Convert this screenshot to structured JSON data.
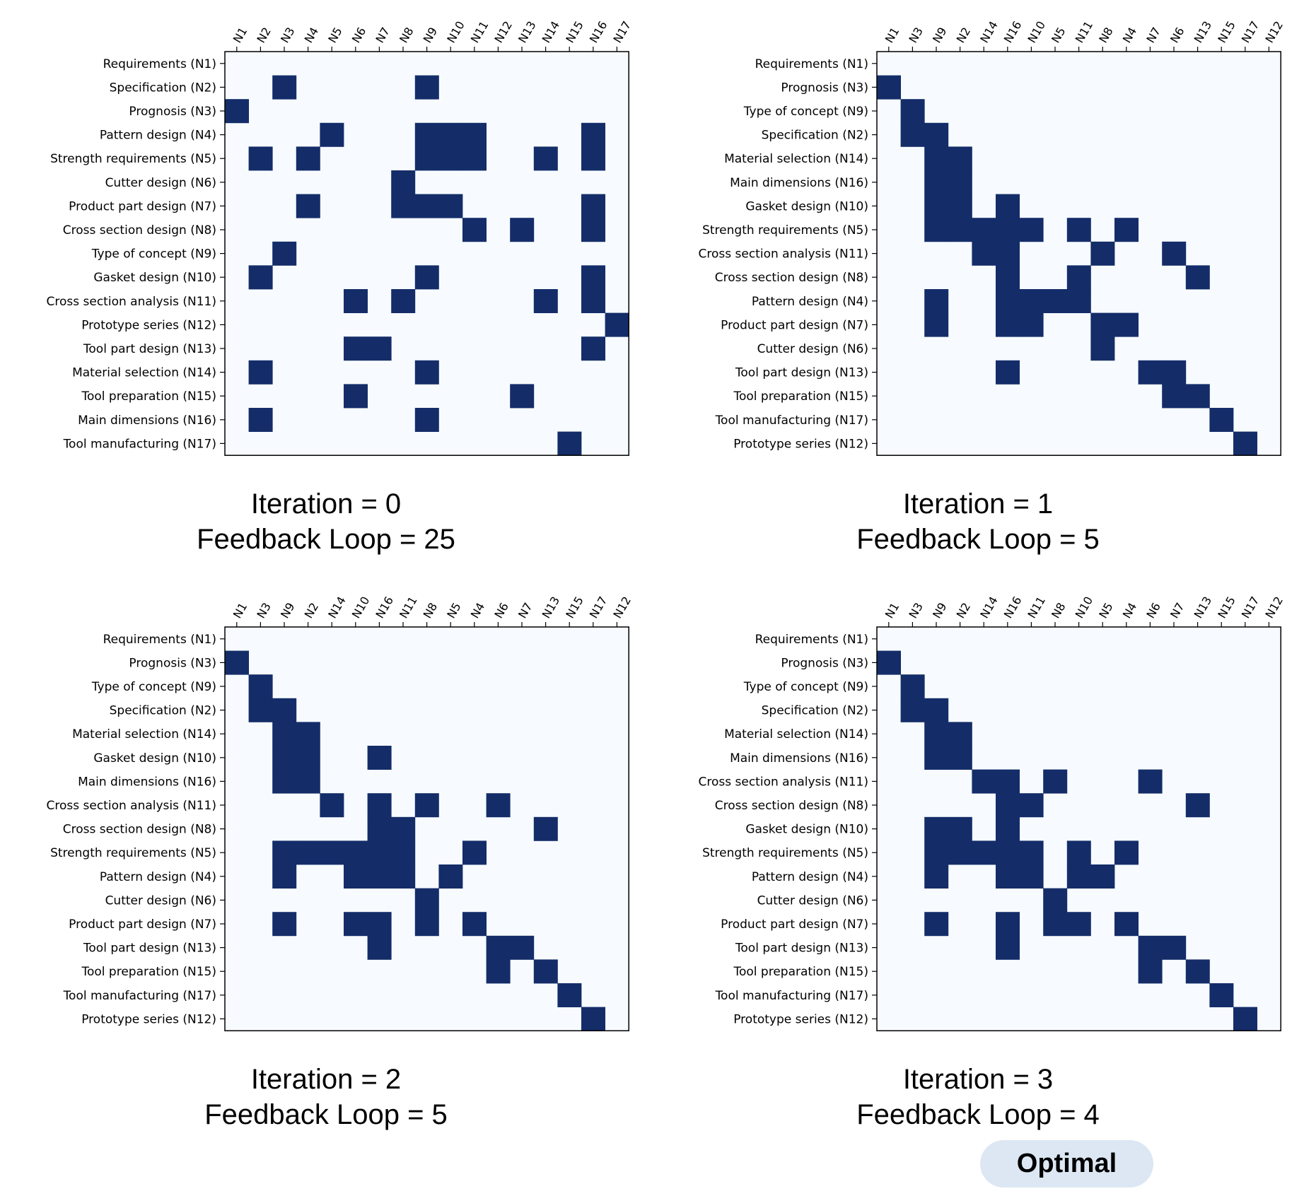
{
  "colors": {
    "filled": "#142d69",
    "empty": "#f7fbff",
    "badge": "#dce7f3"
  },
  "badge": "Optimal",
  "chart_data": [
    {
      "type": "heatmap",
      "caption_line1": "Iteration = 0",
      "caption_line2": "Feedback Loop = 25",
      "x_labels": [
        "N1",
        "N2",
        "N3",
        "N4",
        "N5",
        "N6",
        "N7",
        "N8",
        "N9",
        "N10",
        "N11",
        "N12",
        "N13",
        "N14",
        "N15",
        "N16",
        "N17"
      ],
      "y_labels": [
        "Requirements (N1)",
        "Specification (N2)",
        "Prognosis (N3)",
        "Pattern design (N4)",
        "Strength requirements (N5)",
        "Cutter design (N6)",
        "Product part design (N7)",
        "Cross section design (N8)",
        "Type of concept (N9)",
        "Gasket design (N10)",
        "Cross section analysis (N11)",
        "Prototype series (N12)",
        "Tool part design (N13)",
        "Material selection (N14)",
        "Tool preparation (N15)",
        "Main dimensions (N16)",
        "Tool manufacturing (N17)"
      ],
      "cells": [
        [
          1,
          2
        ],
        [
          1,
          8
        ],
        [
          2,
          0
        ],
        [
          3,
          4
        ],
        [
          3,
          8
        ],
        [
          3,
          9
        ],
        [
          3,
          10
        ],
        [
          3,
          15
        ],
        [
          4,
          1
        ],
        [
          4,
          3
        ],
        [
          4,
          8
        ],
        [
          4,
          9
        ],
        [
          4,
          10
        ],
        [
          4,
          13
        ],
        [
          4,
          15
        ],
        [
          5,
          7
        ],
        [
          6,
          3
        ],
        [
          6,
          7
        ],
        [
          6,
          8
        ],
        [
          6,
          9
        ],
        [
          6,
          15
        ],
        [
          7,
          10
        ],
        [
          7,
          12
        ],
        [
          7,
          15
        ],
        [
          8,
          2
        ],
        [
          9,
          1
        ],
        [
          9,
          8
        ],
        [
          9,
          15
        ],
        [
          10,
          5
        ],
        [
          10,
          7
        ],
        [
          10,
          13
        ],
        [
          10,
          15
        ],
        [
          11,
          16
        ],
        [
          12,
          5
        ],
        [
          12,
          6
        ],
        [
          12,
          15
        ],
        [
          13,
          1
        ],
        [
          13,
          8
        ],
        [
          14,
          5
        ],
        [
          14,
          12
        ],
        [
          15,
          1
        ],
        [
          15,
          8
        ],
        [
          16,
          14
        ]
      ]
    },
    {
      "type": "heatmap",
      "caption_line1": "Iteration = 1",
      "caption_line2": "Feedback Loop = 5",
      "x_labels": [
        "N1",
        "N3",
        "N9",
        "N2",
        "N14",
        "N16",
        "N10",
        "N5",
        "N11",
        "N8",
        "N4",
        "N7",
        "N6",
        "N13",
        "N15",
        "N17",
        "N12"
      ],
      "y_labels": [
        "Requirements (N1)",
        "Prognosis (N3)",
        "Type of concept (N9)",
        "Specification (N2)",
        "Material selection (N14)",
        "Main dimensions (N16)",
        "Gasket design (N10)",
        "Strength requirements (N5)",
        "Cross section analysis (N11)",
        "Cross section design (N8)",
        "Pattern design (N4)",
        "Product part design (N7)",
        "Cutter design (N6)",
        "Tool part design (N13)",
        "Tool preparation (N15)",
        "Tool manufacturing (N17)",
        "Prototype series (N12)"
      ],
      "cells": [
        [
          1,
          0
        ],
        [
          2,
          1
        ],
        [
          3,
          1
        ],
        [
          3,
          2
        ],
        [
          4,
          2
        ],
        [
          4,
          3
        ],
        [
          5,
          2
        ],
        [
          5,
          3
        ],
        [
          6,
          2
        ],
        [
          6,
          3
        ],
        [
          6,
          5
        ],
        [
          7,
          2
        ],
        [
          7,
          3
        ],
        [
          7,
          4
        ],
        [
          7,
          5
        ],
        [
          7,
          6
        ],
        [
          7,
          8
        ],
        [
          7,
          10
        ],
        [
          8,
          4
        ],
        [
          8,
          5
        ],
        [
          8,
          9
        ],
        [
          8,
          12
        ],
        [
          9,
          5
        ],
        [
          9,
          8
        ],
        [
          9,
          13
        ],
        [
          10,
          2
        ],
        [
          10,
          5
        ],
        [
          10,
          6
        ],
        [
          10,
          7
        ],
        [
          10,
          8
        ],
        [
          11,
          2
        ],
        [
          11,
          5
        ],
        [
          11,
          6
        ],
        [
          11,
          9
        ],
        [
          11,
          10
        ],
        [
          12,
          9
        ],
        [
          13,
          5
        ],
        [
          13,
          11
        ],
        [
          13,
          12
        ],
        [
          14,
          12
        ],
        [
          14,
          13
        ],
        [
          15,
          14
        ],
        [
          16,
          15
        ]
      ]
    },
    {
      "type": "heatmap",
      "caption_line1": "Iteration = 2",
      "caption_line2": "Feedback Loop = 5",
      "x_labels": [
        "N1",
        "N3",
        "N9",
        "N2",
        "N14",
        "N10",
        "N16",
        "N11",
        "N8",
        "N5",
        "N4",
        "N6",
        "N7",
        "N13",
        "N15",
        "N17",
        "N12"
      ],
      "y_labels": [
        "Requirements (N1)",
        "Prognosis (N3)",
        "Type of concept (N9)",
        "Specification (N2)",
        "Material selection (N14)",
        "Gasket design (N10)",
        "Main dimensions (N16)",
        "Cross section analysis (N11)",
        "Cross section design (N8)",
        "Strength requirements (N5)",
        "Pattern design (N4)",
        "Cutter design (N6)",
        "Product part design (N7)",
        "Tool part design (N13)",
        "Tool preparation (N15)",
        "Tool manufacturing (N17)",
        "Prototype series (N12)"
      ],
      "cells": [
        [
          1,
          0
        ],
        [
          2,
          1
        ],
        [
          3,
          1
        ],
        [
          3,
          2
        ],
        [
          4,
          2
        ],
        [
          4,
          3
        ],
        [
          5,
          2
        ],
        [
          5,
          3
        ],
        [
          5,
          6
        ],
        [
          6,
          2
        ],
        [
          6,
          3
        ],
        [
          7,
          4
        ],
        [
          7,
          6
        ],
        [
          7,
          8
        ],
        [
          7,
          11
        ],
        [
          8,
          6
        ],
        [
          8,
          7
        ],
        [
          8,
          13
        ],
        [
          9,
          2
        ],
        [
          9,
          3
        ],
        [
          9,
          4
        ],
        [
          9,
          5
        ],
        [
          9,
          6
        ],
        [
          9,
          7
        ],
        [
          9,
          10
        ],
        [
          10,
          2
        ],
        [
          10,
          5
        ],
        [
          10,
          6
        ],
        [
          10,
          7
        ],
        [
          10,
          9
        ],
        [
          11,
          8
        ],
        [
          12,
          2
        ],
        [
          12,
          5
        ],
        [
          12,
          6
        ],
        [
          12,
          8
        ],
        [
          12,
          10
        ],
        [
          13,
          6
        ],
        [
          13,
          11
        ],
        [
          13,
          12
        ],
        [
          14,
          11
        ],
        [
          14,
          13
        ],
        [
          15,
          14
        ],
        [
          16,
          15
        ]
      ]
    },
    {
      "type": "heatmap",
      "caption_line1": "Iteration = 3",
      "caption_line2": "Feedback Loop = 4",
      "x_labels": [
        "N1",
        "N3",
        "N9",
        "N2",
        "N14",
        "N16",
        "N11",
        "N8",
        "N10",
        "N5",
        "N4",
        "N6",
        "N7",
        "N13",
        "N15",
        "N17",
        "N12"
      ],
      "y_labels": [
        "Requirements (N1)",
        "Prognosis (N3)",
        "Type of concept (N9)",
        "Specification (N2)",
        "Material selection (N14)",
        "Main dimensions (N16)",
        "Cross section analysis (N11)",
        "Cross section design (N8)",
        "Gasket design (N10)",
        "Strength requirements (N5)",
        "Pattern design (N4)",
        "Cutter design (N6)",
        "Product part design (N7)",
        "Tool part design (N13)",
        "Tool preparation (N15)",
        "Tool manufacturing (N17)",
        "Prototype series (N12)"
      ],
      "cells": [
        [
          1,
          0
        ],
        [
          2,
          1
        ],
        [
          3,
          1
        ],
        [
          3,
          2
        ],
        [
          4,
          2
        ],
        [
          4,
          3
        ],
        [
          5,
          2
        ],
        [
          5,
          3
        ],
        [
          6,
          4
        ],
        [
          6,
          5
        ],
        [
          6,
          7
        ],
        [
          6,
          11
        ],
        [
          7,
          5
        ],
        [
          7,
          6
        ],
        [
          7,
          13
        ],
        [
          8,
          2
        ],
        [
          8,
          3
        ],
        [
          8,
          5
        ],
        [
          9,
          2
        ],
        [
          9,
          3
        ],
        [
          9,
          4
        ],
        [
          9,
          5
        ],
        [
          9,
          6
        ],
        [
          9,
          8
        ],
        [
          9,
          10
        ],
        [
          10,
          2
        ],
        [
          10,
          5
        ],
        [
          10,
          6
        ],
        [
          10,
          8
        ],
        [
          10,
          9
        ],
        [
          11,
          7
        ],
        [
          12,
          2
        ],
        [
          12,
          5
        ],
        [
          12,
          7
        ],
        [
          12,
          8
        ],
        [
          12,
          10
        ],
        [
          13,
          5
        ],
        [
          13,
          11
        ],
        [
          13,
          12
        ],
        [
          14,
          11
        ],
        [
          14,
          13
        ],
        [
          15,
          14
        ],
        [
          16,
          15
        ]
      ]
    }
  ]
}
